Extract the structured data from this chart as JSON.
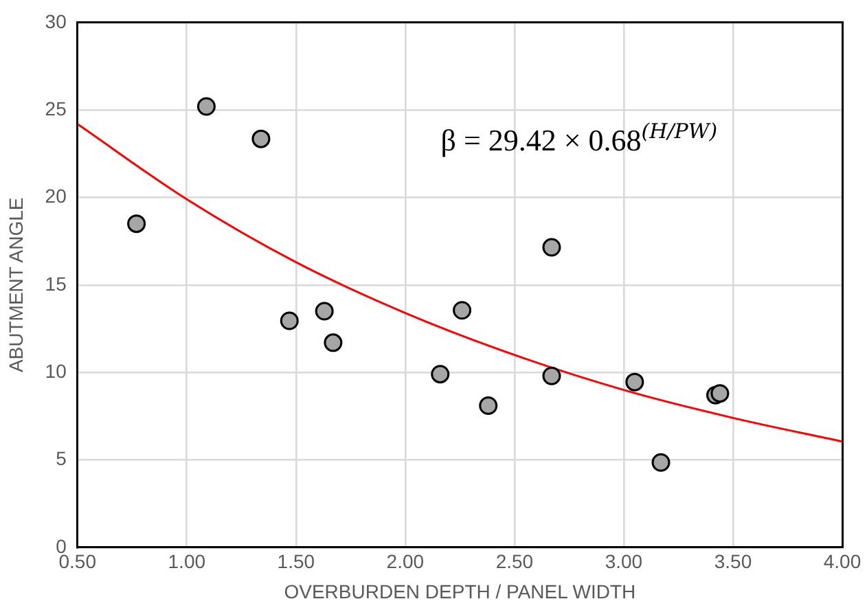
{
  "chart_data": {
    "type": "scatter",
    "xlabel": "OVERBURDEN DEPTH / PANEL WIDTH",
    "ylabel": "ABUTMENT ANGLE",
    "annotations": [
      "β = 29.42 × 0.68$^{(H/PW)}$"
    ],
    "series": [
      {
        "color": "#a6a6a6",
        "marker": "circle",
        "x": [
          0.77,
          1.09,
          1.34,
          1.47,
          1.63,
          1.67,
          2.16,
          2.26,
          2.38,
          2.67,
          2.67,
          3.05,
          3.17,
          3.42,
          3.44
        ],
        "values": [
          18.5,
          25.2,
          23.35,
          12.95,
          13.5,
          11.7,
          9.9,
          13.55,
          8.1,
          17.15,
          9.8,
          9.45,
          4.85,
          8.7,
          8.8
        ]
      },
      {
        "type": "line",
        "color": "#ff0000",
        "marker": "none",
        "line_style": "solid",
        "x": [
          0.5,
          1.0,
          1.5,
          2.0,
          2.5,
          3.0,
          3.5,
          4.0
        ],
        "values": [
          24.2,
          19.9,
          16.3,
          13.4,
          11.0,
          9.0,
          7.4,
          6.05
        ]
      }
    ],
    "xlim": [
      0.5,
      4.0
    ],
    "xticks": [
      {
        "value": 0.5,
        "label": "0.50"
      },
      {
        "value": 1.0,
        "label": "1.00"
      },
      {
        "value": 1.5,
        "label": "1.50"
      },
      {
        "value": 2.0,
        "label": "2.00"
      },
      {
        "value": 2.5,
        "label": "2.50"
      },
      {
        "value": 3.0,
        "label": "3.00"
      },
      {
        "value": 3.5,
        "label": "3.50"
      },
      {
        "value": 4.0,
        "label": "4.00"
      }
    ],
    "ylim": [
      0,
      30
    ],
    "yticks": [
      0,
      5,
      10,
      15,
      20,
      25,
      30
    ],
    "grid": true,
    "legend": false
  }
}
